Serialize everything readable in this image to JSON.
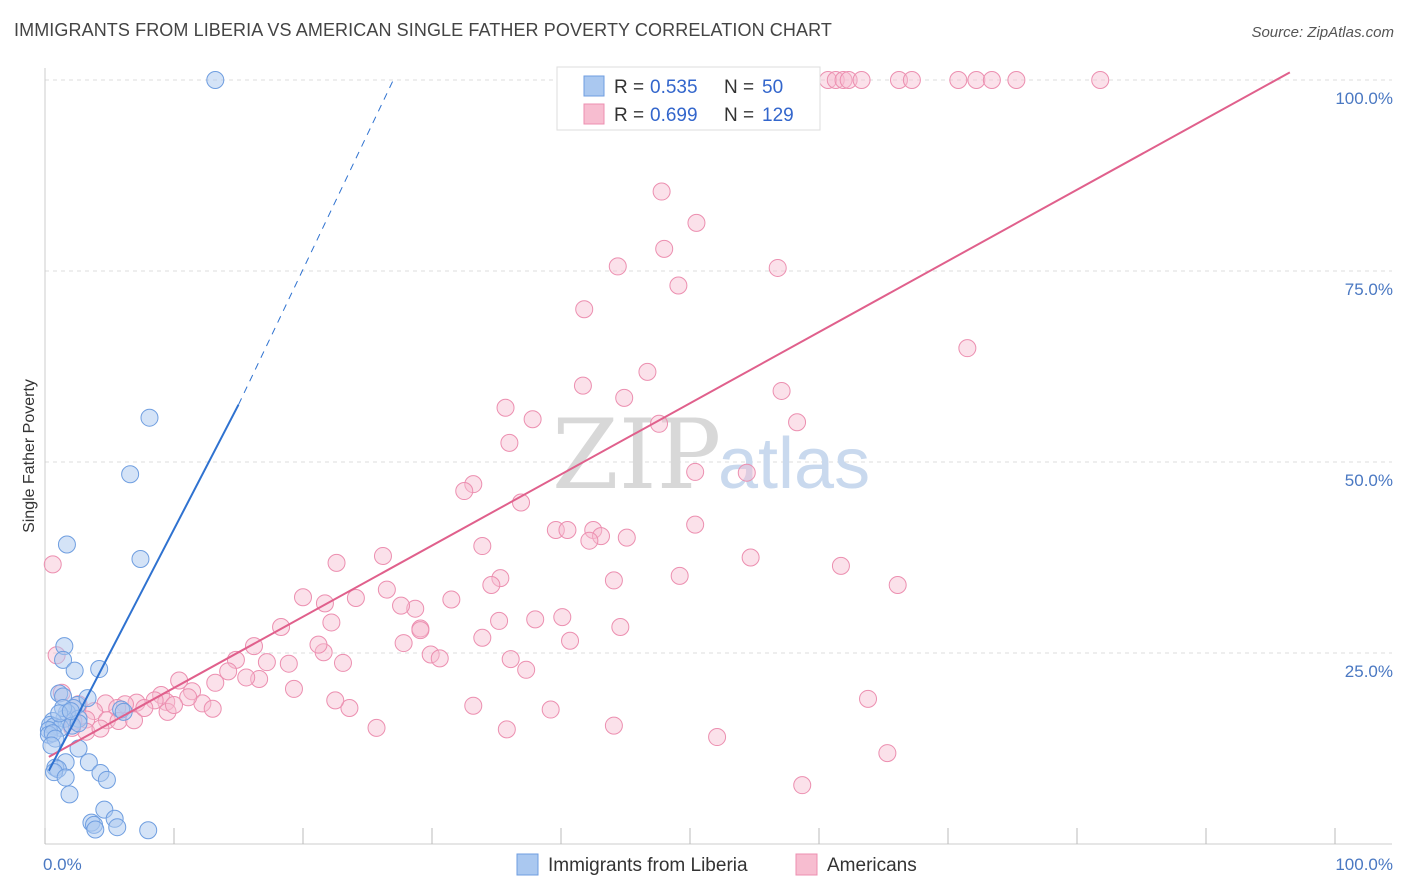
{
  "title": "IMMIGRANTS FROM LIBERIA VS AMERICAN SINGLE FATHER POVERTY CORRELATION CHART",
  "source": "Source: ZipAtlas.com",
  "watermark": {
    "zip": "ZIP",
    "atlas": "atlas"
  },
  "chart_data": {
    "type": "scatter",
    "ylabel": "Single Father Poverty",
    "x_tick_labels": [
      "0.0%",
      "100.0%"
    ],
    "y_tick_labels": [
      "25.0%",
      "50.0%",
      "75.0%",
      "100.0%"
    ],
    "y_ticks": [
      25,
      50,
      75,
      100
    ],
    "xlim": [
      0,
      100
    ],
    "ylim": [
      0,
      100
    ],
    "grid": true,
    "legend_position": "top-center",
    "colors": {
      "liberia_fill": "#aac8f0",
      "liberia_stroke": "#6f9ee0",
      "liberia_line": "#2f72d0",
      "americans_fill": "#f7bdd0",
      "americans_stroke": "#ec8fb0",
      "americans_line": "#e0608c"
    },
    "stats_legend": [
      {
        "r_label": "R =",
        "r": "0.535",
        "n_label": "N =",
        "n": "50",
        "series": "liberia"
      },
      {
        "r_label": "R =",
        "r": "0.699",
        "n_label": "N =",
        "n": "129",
        "series": "americans"
      }
    ],
    "series": [
      {
        "name": "Immigrants from Liberia",
        "key": "liberia",
        "points": [
          [
            13.2,
            100
          ],
          [
            8.1,
            55.8
          ],
          [
            6.6,
            48.4
          ],
          [
            1.7,
            39.2
          ],
          [
            7.4,
            37.3
          ],
          [
            1.5,
            25.9
          ],
          [
            1.4,
            24.1
          ],
          [
            2.3,
            22.7
          ],
          [
            4.2,
            22.9
          ],
          [
            1.1,
            19.7
          ],
          [
            1.4,
            19.3
          ],
          [
            2.5,
            18.2
          ],
          [
            3.3,
            19.1
          ],
          [
            2.2,
            17.8
          ],
          [
            1.7,
            17.2
          ],
          [
            2.6,
            16.4
          ],
          [
            1.5,
            16.4
          ],
          [
            0.6,
            16.1
          ],
          [
            0.4,
            15.6
          ],
          [
            0.7,
            15.4
          ],
          [
            1.2,
            15.2
          ],
          [
            2.1,
            15.5
          ],
          [
            2.6,
            15.8
          ],
          [
            1.4,
            17.8
          ],
          [
            0.3,
            14.9
          ],
          [
            0.3,
            14.3
          ],
          [
            0.6,
            14.5
          ],
          [
            0.8,
            13.8
          ],
          [
            0.5,
            12.9
          ],
          [
            2.6,
            12.5
          ],
          [
            3.4,
            10.7
          ],
          [
            1.6,
            10.7
          ],
          [
            0.8,
            10.0
          ],
          [
            1.0,
            9.8
          ],
          [
            0.7,
            9.4
          ],
          [
            4.3,
            9.3
          ],
          [
            1.6,
            8.7
          ],
          [
            4.8,
            8.4
          ],
          [
            1.9,
            6.5
          ],
          [
            4.6,
            4.5
          ],
          [
            5.4,
            3.3
          ],
          [
            3.6,
            2.8
          ],
          [
            3.8,
            2.5
          ],
          [
            5.6,
            2.2
          ],
          [
            3.9,
            1.9
          ],
          [
            8.0,
            1.8
          ],
          [
            5.9,
            17.6
          ],
          [
            1.1,
            17.1
          ],
          [
            2.0,
            17.4
          ],
          [
            6.1,
            17.3
          ]
        ],
        "trend": {
          "x0": 0.3,
          "y0": 9.6,
          "x1": 15.0,
          "y1": 57.5,
          "x_dash_end": 27.0,
          "y_dash_end": 100
        }
      },
      {
        "name": "Americans",
        "key": "americans",
        "points": [
          [
            47.3,
            100
          ],
          [
            48.0,
            100
          ],
          [
            49.5,
            100
          ],
          [
            53.1,
            100
          ],
          [
            60.7,
            100
          ],
          [
            61.3,
            100
          ],
          [
            61.9,
            100
          ],
          [
            62.3,
            100
          ],
          [
            63.3,
            100
          ],
          [
            66.2,
            100
          ],
          [
            67.2,
            100
          ],
          [
            70.8,
            100
          ],
          [
            72.2,
            100
          ],
          [
            73.4,
            100
          ],
          [
            75.3,
            100
          ],
          [
            81.8,
            100
          ],
          [
            47.8,
            85.4
          ],
          [
            50.5,
            81.3
          ],
          [
            48.0,
            77.9
          ],
          [
            44.4,
            75.6
          ],
          [
            49.1,
            73.1
          ],
          [
            56.8,
            75.4
          ],
          [
            41.8,
            70.0
          ],
          [
            71.5,
            64.9
          ],
          [
            46.7,
            61.8
          ],
          [
            41.7,
            60.0
          ],
          [
            57.1,
            59.3
          ],
          [
            44.9,
            58.4
          ],
          [
            35.7,
            57.1
          ],
          [
            37.8,
            55.6
          ],
          [
            58.3,
            55.2
          ],
          [
            47.6,
            55.0
          ],
          [
            36.0,
            52.5
          ],
          [
            50.4,
            48.7
          ],
          [
            54.4,
            48.6
          ],
          [
            33.2,
            47.1
          ],
          [
            32.5,
            46.2
          ],
          [
            36.9,
            44.7
          ],
          [
            39.6,
            41.1
          ],
          [
            40.5,
            41.1
          ],
          [
            42.5,
            41.1
          ],
          [
            43.1,
            40.3
          ],
          [
            45.1,
            40.1
          ],
          [
            50.4,
            41.8
          ],
          [
            42.2,
            39.7
          ],
          [
            33.9,
            39.0
          ],
          [
            54.7,
            37.5
          ],
          [
            61.7,
            36.4
          ],
          [
            26.2,
            37.7
          ],
          [
            22.6,
            36.8
          ],
          [
            49.2,
            35.1
          ],
          [
            35.3,
            34.8
          ],
          [
            34.6,
            33.9
          ],
          [
            44.1,
            34.5
          ],
          [
            26.5,
            33.3
          ],
          [
            66.1,
            33.9
          ],
          [
            20.0,
            32.3
          ],
          [
            24.1,
            32.2
          ],
          [
            21.7,
            31.5
          ],
          [
            31.5,
            32.0
          ],
          [
            28.7,
            30.8
          ],
          [
            27.6,
            31.2
          ],
          [
            40.1,
            29.7
          ],
          [
            35.2,
            29.2
          ],
          [
            38.0,
            29.4
          ],
          [
            44.6,
            28.4
          ],
          [
            22.2,
            29.0
          ],
          [
            29.1,
            28.2
          ],
          [
            40.7,
            26.6
          ],
          [
            27.8,
            26.3
          ],
          [
            21.6,
            25.1
          ],
          [
            0.6,
            36.6
          ],
          [
            0.9,
            24.7
          ],
          [
            16.2,
            25.9
          ],
          [
            18.3,
            28.4
          ],
          [
            21.2,
            26.1
          ],
          [
            29.1,
            28.0
          ],
          [
            33.9,
            27.0
          ],
          [
            29.9,
            24.8
          ],
          [
            23.1,
            23.7
          ],
          [
            14.8,
            24.1
          ],
          [
            18.9,
            23.6
          ],
          [
            30.6,
            24.3
          ],
          [
            36.1,
            24.2
          ],
          [
            37.3,
            22.8
          ],
          [
            17.2,
            23.8
          ],
          [
            14.2,
            22.6
          ],
          [
            16.6,
            21.6
          ],
          [
            9.0,
            19.5
          ],
          [
            11.4,
            20.0
          ],
          [
            13.2,
            21.1
          ],
          [
            19.3,
            20.3
          ],
          [
            10.4,
            21.4
          ],
          [
            15.6,
            21.8
          ],
          [
            33.2,
            18.1
          ],
          [
            23.6,
            17.8
          ],
          [
            22.5,
            18.8
          ],
          [
            39.2,
            17.6
          ],
          [
            35.8,
            15.0
          ],
          [
            12.2,
            18.4
          ],
          [
            9.4,
            18.6
          ],
          [
            8.5,
            18.8
          ],
          [
            7.1,
            18.5
          ],
          [
            6.2,
            18.3
          ],
          [
            4.7,
            18.4
          ],
          [
            5.6,
            17.8
          ],
          [
            2.6,
            18.3
          ],
          [
            3.8,
            17.4
          ],
          [
            4.8,
            16.2
          ],
          [
            5.7,
            16.1
          ],
          [
            6.9,
            16.2
          ],
          [
            3.2,
            16.3
          ],
          [
            2.2,
            16.1
          ],
          [
            1.3,
            19.8
          ],
          [
            3.2,
            14.7
          ],
          [
            2.1,
            15.2
          ],
          [
            4.3,
            15.1
          ],
          [
            25.7,
            15.2
          ],
          [
            63.8,
            19.0
          ],
          [
            65.3,
            11.9
          ],
          [
            52.1,
            14.0
          ],
          [
            44.1,
            15.5
          ],
          [
            58.7,
            7.7
          ],
          [
            9.5,
            17.3
          ],
          [
            13.0,
            17.7
          ],
          [
            7.7,
            17.8
          ],
          [
            11.1,
            19.2
          ],
          [
            10.0,
            18.2
          ]
        ],
        "trend": {
          "x0": 0.3,
          "y0": 11.4,
          "x1": 96.5,
          "y1": 101.0
        }
      }
    ]
  },
  "bottom_legend": [
    {
      "label": "Immigrants from Liberia",
      "series": "liberia"
    },
    {
      "label": "Americans",
      "series": "americans"
    }
  ]
}
